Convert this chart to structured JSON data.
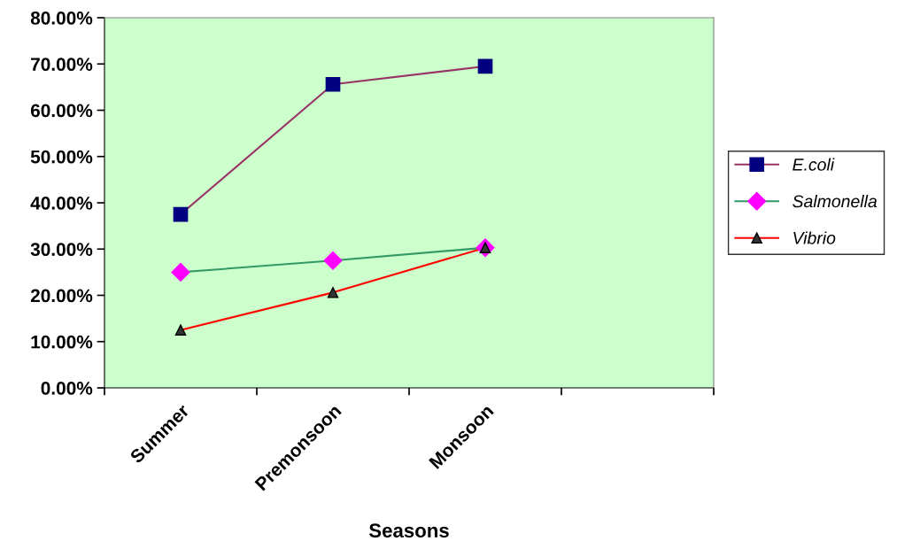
{
  "chart_data": {
    "type": "line",
    "xlabel": "Seasons",
    "categories": [
      "Summer",
      "Premonsoon",
      "Monsoon",
      null
    ],
    "series": [
      {
        "name": "E.coli",
        "color": "#993366",
        "colors": [
          "#000080",
          "#000080",
          "#000080",
          null
        ],
        "marker": "square",
        "values": [
          37.5,
          65.6,
          69.5,
          null
        ]
      },
      {
        "name": "Salmonella",
        "color": "#339966",
        "colors": [
          "#ff00ff",
          "#ff00ff",
          "#ff00ff",
          null
        ],
        "marker": "diamond",
        "values": [
          25.0,
          27.5,
          30.3,
          null
        ]
      },
      {
        "name": "Vibrio",
        "color": "#ff0000",
        "colors": [
          "#333333",
          "#333333",
          "#333333",
          null
        ],
        "marker": "triangle",
        "values": [
          12.5,
          20.6,
          30.3,
          null
        ]
      }
    ],
    "ylim": [
      0,
      80
    ],
    "yticks": [
      {
        "value": 0,
        "label": "0.00%"
      },
      {
        "value": 10,
        "label": "10.00%"
      },
      {
        "value": 20,
        "label": "20.00%"
      },
      {
        "value": 30,
        "label": "30.00%"
      },
      {
        "value": 40,
        "label": "40.00%"
      },
      {
        "value": 50,
        "label": "50.00%"
      },
      {
        "value": 60,
        "label": "60.00%"
      },
      {
        "value": 70,
        "label": "70.00%"
      },
      {
        "value": 80,
        "label": "80.00%"
      }
    ],
    "grid": false,
    "legend": "right"
  }
}
